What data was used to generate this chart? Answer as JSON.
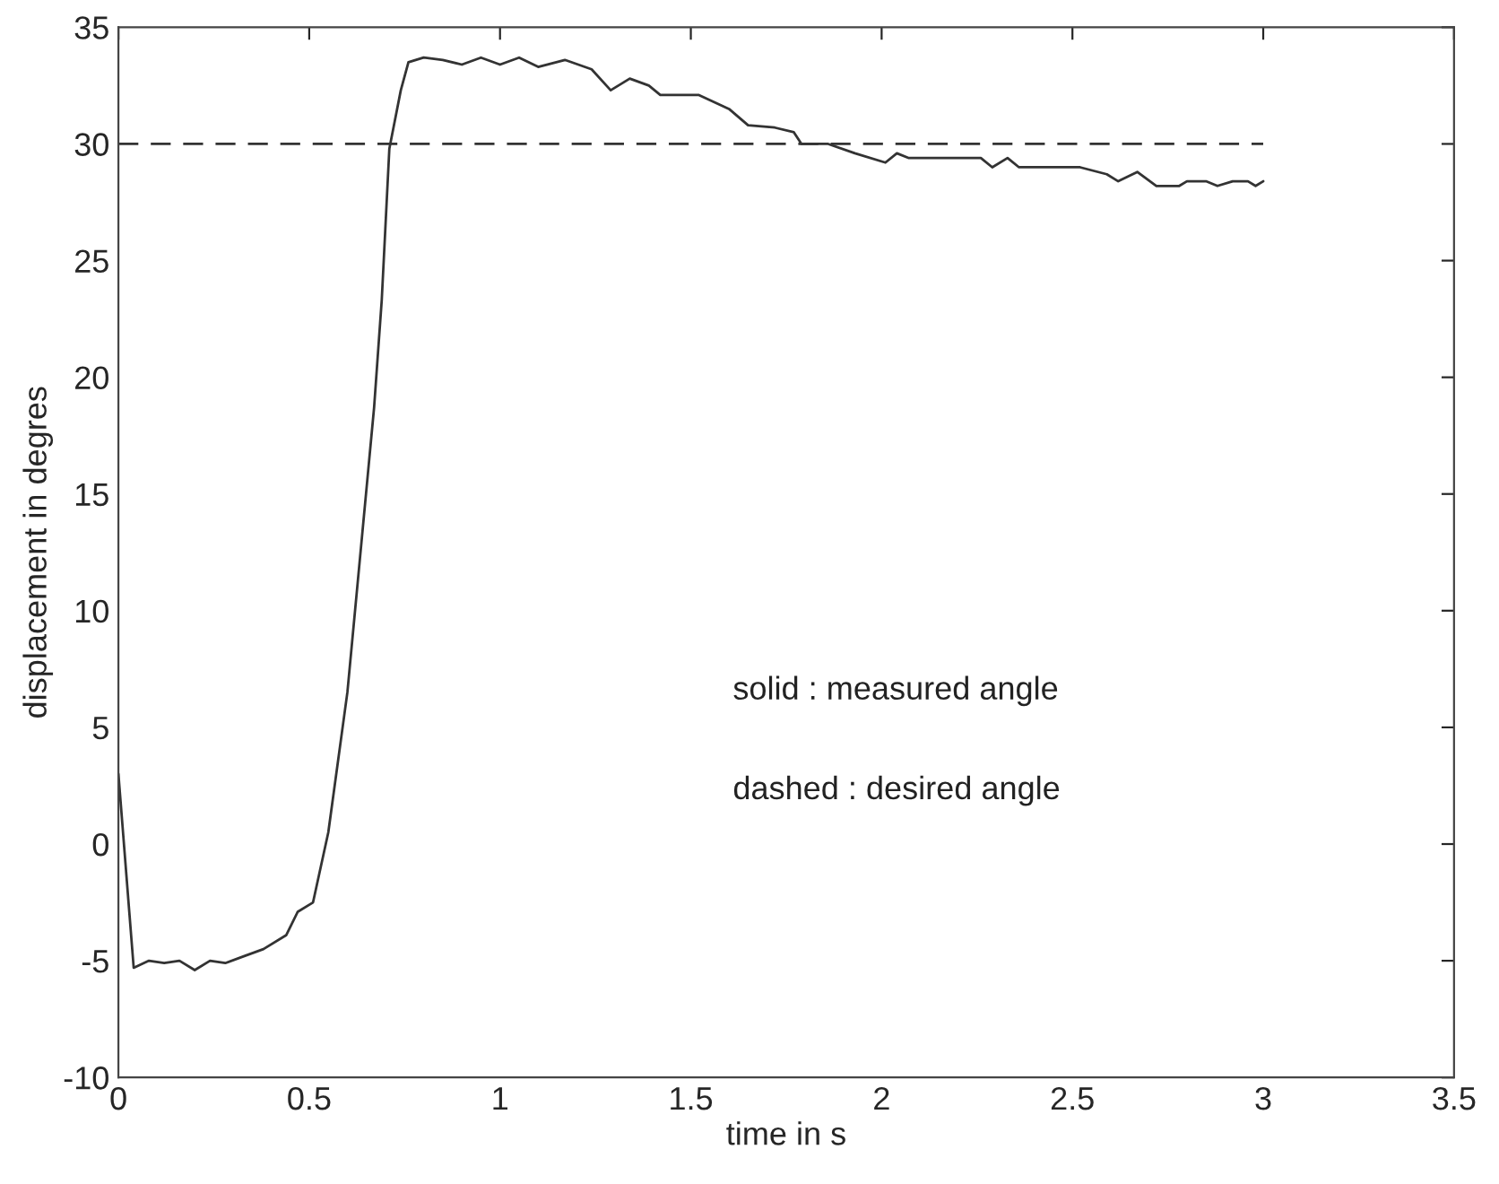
{
  "chart_data": {
    "type": "line",
    "xlabel": "time in s",
    "ylabel": "displacement in degres",
    "xlim": [
      0,
      3.5
    ],
    "xticks": [
      0,
      0.5,
      1,
      1.5,
      2,
      2.5,
      3,
      3.5
    ],
    "ylim": [
      -10,
      35
    ],
    "yticks": [
      -10,
      -5,
      0,
      5,
      10,
      15,
      20,
      25,
      30,
      35
    ],
    "grid": false,
    "annotations": [
      "solid : measured angle",
      "dashed : desired angle"
    ],
    "series": [
      {
        "color": "#333333",
        "line_style": "solid",
        "x": [
          0,
          0.04,
          0.08,
          0.12,
          0.16,
          0.2,
          0.24,
          0.28,
          0.33,
          0.38,
          0.44,
          0.47,
          0.51,
          0.55,
          0.6,
          0.67,
          0.69,
          0.71,
          0.74,
          0.76,
          0.8,
          0.85,
          0.9,
          0.95,
          1.0,
          1.05,
          1.1,
          1.17,
          1.24,
          1.29,
          1.34,
          1.39,
          1.42,
          1.52,
          1.6,
          1.65,
          1.72,
          1.77,
          1.79,
          1.86,
          1.93,
          2.01,
          2.04,
          2.07,
          2.15,
          2.26,
          2.29,
          2.33,
          2.36,
          2.52,
          2.59,
          2.62,
          2.67,
          2.72,
          2.78,
          2.8,
          2.85,
          2.88,
          2.92,
          2.96,
          2.98,
          3.0
        ],
        "values": [
          3.0,
          -5.3,
          -5.0,
          -5.1,
          -5.0,
          -5.4,
          -5.0,
          -5.1,
          -4.8,
          -4.5,
          -3.9,
          -2.9,
          -2.5,
          0.5,
          6.5,
          18.7,
          23.3,
          29.8,
          32.3,
          33.5,
          33.7,
          33.6,
          33.4,
          33.7,
          33.4,
          33.7,
          33.3,
          33.6,
          33.2,
          32.3,
          32.8,
          32.5,
          32.1,
          32.1,
          31.5,
          30.8,
          30.7,
          30.5,
          30.0,
          30.0,
          29.6,
          29.2,
          29.6,
          29.4,
          29.4,
          29.4,
          29.0,
          29.4,
          29.0,
          29.0,
          28.7,
          28.4,
          28.8,
          28.2,
          28.2,
          28.4,
          28.4,
          28.2,
          28.4,
          28.4,
          28.2,
          28.4
        ]
      },
      {
        "color": "#333333",
        "line_style": "dashed",
        "x": [
          0,
          3.0
        ],
        "values": [
          30,
          30
        ]
      }
    ]
  }
}
